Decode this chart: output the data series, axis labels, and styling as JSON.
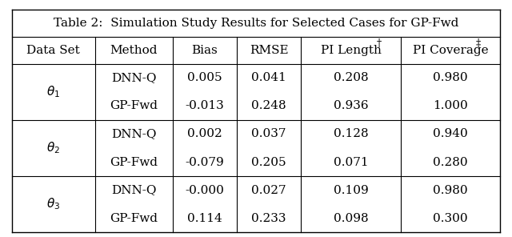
{
  "title": "Table 2:  Simulation Study Results for Selected Cases for GP-Fwd",
  "col_headers": [
    "Data Set",
    "Method",
    "Bias",
    "RMSE",
    "PI Length†",
    "PI Coverage‡"
  ],
  "row_groups": [
    {
      "label": "$\\theta_1$",
      "rows": [
        [
          "DNN-Q",
          "0.005",
          "0.041",
          "0.208",
          "0.980"
        ],
        [
          "GP-Fwd",
          "-0.013",
          "0.248",
          "0.936",
          "1.000"
        ]
      ]
    },
    {
      "label": "$\\theta_2$",
      "rows": [
        [
          "DNN-Q",
          "0.002",
          "0.037",
          "0.128",
          "0.940"
        ],
        [
          "GP-Fwd",
          "-0.079",
          "0.205",
          "0.071",
          "0.280"
        ]
      ]
    },
    {
      "label": "$\\theta_3$",
      "rows": [
        [
          "DNN-Q",
          "-0.000",
          "0.027",
          "0.109",
          "0.980"
        ],
        [
          "GP-Fwd",
          "0.114",
          "0.233",
          "0.098",
          "0.300"
        ]
      ]
    }
  ],
  "background_color": "#ffffff",
  "text_color": "#000000",
  "font_size": 11,
  "title_font_size": 11
}
